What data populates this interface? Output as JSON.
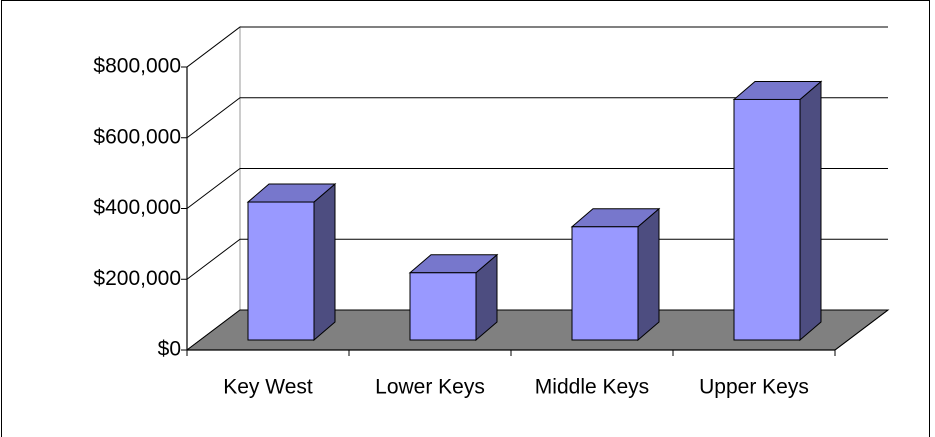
{
  "chart_data": {
    "type": "bar3d",
    "categories": [
      "Key West",
      "Lower Keys",
      "Middle Keys",
      "Upper Keys"
    ],
    "values": [
      390000,
      190000,
      320000,
      680000
    ],
    "color": "#9999ff",
    "ylim": [
      0,
      800000
    ],
    "yticks": [
      {
        "value": 0,
        "label": "$0"
      },
      {
        "value": 200000,
        "label": "$200,000"
      },
      {
        "value": 400000,
        "label": "$400,000"
      },
      {
        "value": 600000,
        "label": "$600,000"
      },
      {
        "value": 800000,
        "label": "$800,000"
      }
    ],
    "grid": true
  }
}
